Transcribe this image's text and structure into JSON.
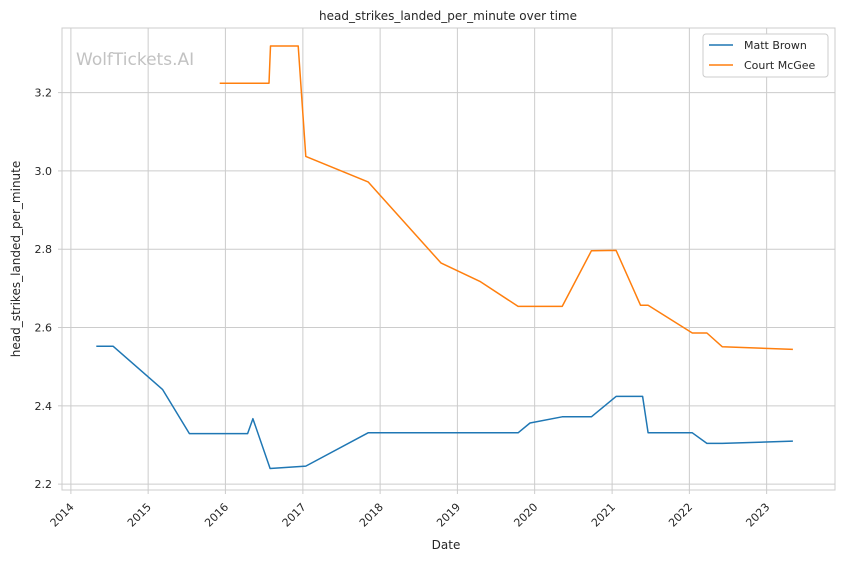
{
  "chart_data": {
    "type": "line",
    "title": "head_strikes_landed_per_minute over time",
    "xlabel": "Date",
    "ylabel": "head_strikes_landed_per_minute",
    "watermark": "WolfTickets.AI",
    "xlim": [
      "2013-11-20",
      "2023-11-20"
    ],
    "ylim": [
      2.185,
      3.365
    ],
    "x_ticks": [
      "2014",
      "2015",
      "2016",
      "2017",
      "2018",
      "2019",
      "2020",
      "2021",
      "2022",
      "2023"
    ],
    "y_ticks": [
      2.2,
      2.4,
      2.6,
      2.8,
      3.0,
      3.2
    ],
    "grid": true,
    "legend_position": "top-right",
    "colors": {
      "Matt Brown": "#1f77b4",
      "Court McGee": "#ff7f0e"
    },
    "series": [
      {
        "name": "Matt Brown",
        "x": [
          "2014-05-01",
          "2014-07-20",
          "2015-03-10",
          "2015-07-15",
          "2016-04-15",
          "2016-05-10",
          "2016-07-30",
          "2017-01-15",
          "2017-11-05",
          "2019-10-15",
          "2019-12-10",
          "2020-05-10",
          "2020-09-25",
          "2021-01-20",
          "2021-05-25",
          "2021-06-20",
          "2022-01-15",
          "2022-03-25",
          "2022-06-05",
          "2023-05-05"
        ],
        "values": [
          2.552,
          2.552,
          2.442,
          2.329,
          2.329,
          2.367,
          2.24,
          2.246,
          2.331,
          2.331,
          2.356,
          2.372,
          2.372,
          2.424,
          2.424,
          2.331,
          2.331,
          2.304,
          2.304,
          2.31
        ]
      },
      {
        "name": "Court McGee",
        "x": [
          "2015-12-05",
          "2016-07-25",
          "2016-08-01",
          "2016-12-10",
          "2017-01-15",
          "2017-11-05",
          "2018-10-15",
          "2019-04-20",
          "2019-10-15",
          "2020-05-10",
          "2020-09-25",
          "2021-01-20",
          "2021-05-15",
          "2021-06-20",
          "2022-01-15",
          "2022-03-25",
          "2022-06-05",
          "2023-05-05"
        ],
        "values": [
          3.224,
          3.224,
          3.319,
          3.319,
          3.037,
          2.972,
          2.765,
          2.717,
          2.654,
          2.654,
          2.796,
          2.797,
          2.657,
          2.657,
          2.586,
          2.586,
          2.551,
          2.544
        ]
      }
    ]
  }
}
